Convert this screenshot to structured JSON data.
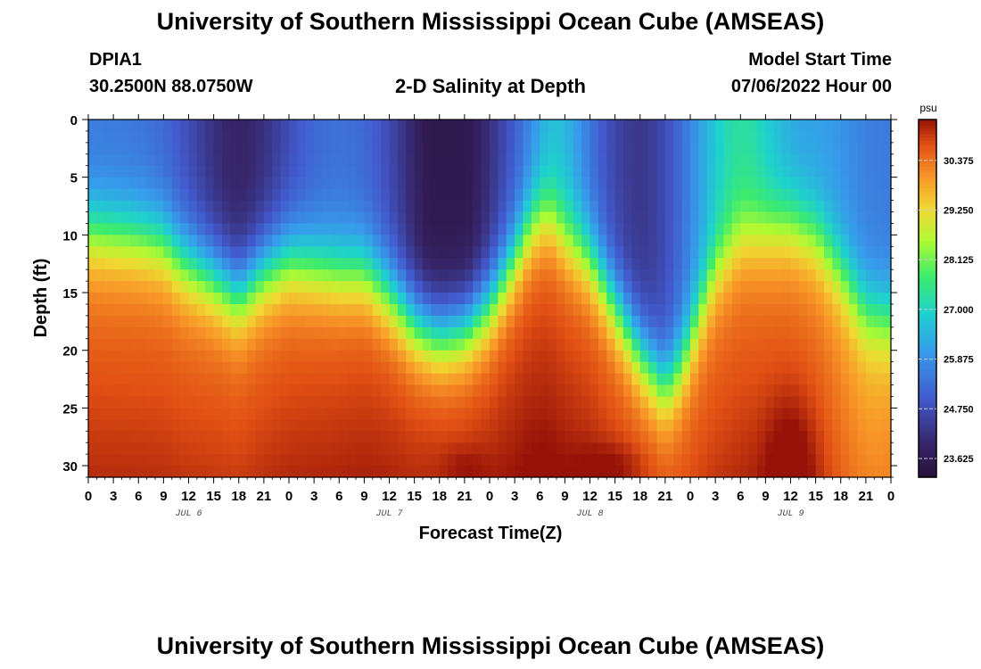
{
  "header": {
    "title": "University of Southern Mississippi Ocean Cube (AMSEAS)",
    "station_id": "DPIA1",
    "station_coords": "30.2500N  88.0750W",
    "subtitle": "2-D Salinity at Depth",
    "model_start_label": "Model Start Time",
    "model_start_value": "07/06/2022 Hour 00"
  },
  "footer": {
    "title": "University of Southern Mississippi Ocean Cube (AMSEAS)"
  },
  "chart_data": {
    "type": "heatmap",
    "title": "2-D Salinity at Depth",
    "xlabel": "Forecast Time(Z)",
    "ylabel": "Depth (ft)",
    "x_unit": "hours since 07/06/2022 00Z",
    "xlim": [
      0,
      96
    ],
    "ylim": [
      0,
      31
    ],
    "y_inverted": true,
    "x_ticks": [
      0,
      3,
      6,
      9,
      12,
      15,
      18,
      21,
      24,
      27,
      30,
      33,
      36,
      39,
      42,
      45,
      48,
      51,
      54,
      57,
      60,
      63,
      66,
      69,
      72,
      75,
      78,
      81,
      84,
      87,
      90,
      93,
      96
    ],
    "x_tick_labels": [
      "0",
      "3",
      "6",
      "9",
      "12",
      "15",
      "18",
      "21",
      "0",
      "3",
      "6",
      "9",
      "12",
      "15",
      "18",
      "21",
      "0",
      "3",
      "6",
      "9",
      "12",
      "15",
      "18",
      "21",
      "0",
      "3",
      "6",
      "9",
      "12",
      "15",
      "18",
      "21",
      "0"
    ],
    "day_labels": [
      {
        "x": 12,
        "label": "JUL 6"
      },
      {
        "x": 36,
        "label": "JUL 7"
      },
      {
        "x": 60,
        "label": "JUL 8"
      },
      {
        "x": 84,
        "label": "JUL 9"
      }
    ],
    "y_ticks": [
      0,
      5,
      10,
      15,
      20,
      25,
      30
    ],
    "y_tick_labels": [
      "0",
      "5",
      "10",
      "15",
      "20",
      "25",
      "30"
    ],
    "colorbar": {
      "unit": "psu",
      "range": [
        23.2,
        31.3
      ],
      "ticks": [
        23.625,
        24.75,
        25.875,
        27.0,
        28.125,
        29.25,
        30.375
      ],
      "tick_labels": [
        "23.625",
        "24.750",
        "25.875",
        "27.000",
        "28.125",
        "29.250",
        "30.375"
      ]
    },
    "value_field": {
      "description": "salinity (psu) vs forecast hour and depth (ft); halocline depth by hour",
      "halocline_depth_by_hour": [
        [
          0,
          9.5
        ],
        [
          6,
          10
        ],
        [
          9,
          10.5
        ],
        [
          11,
          12
        ],
        [
          15,
          13.5
        ],
        [
          18,
          15
        ],
        [
          21,
          13
        ],
        [
          24,
          12
        ],
        [
          27,
          12.5
        ],
        [
          30,
          13
        ],
        [
          33,
          13
        ],
        [
          36,
          15
        ],
        [
          39,
          17.5
        ],
        [
          42,
          18.5
        ],
        [
          45,
          18
        ],
        [
          48,
          16
        ],
        [
          51,
          12
        ],
        [
          53,
          9
        ],
        [
          55,
          8
        ],
        [
          57,
          10
        ],
        [
          60,
          12
        ],
        [
          63,
          16
        ],
        [
          66,
          20
        ],
        [
          69,
          23
        ],
        [
          71,
          21
        ],
        [
          73,
          17
        ],
        [
          75,
          13
        ],
        [
          78,
          10
        ],
        [
          81,
          9.5
        ],
        [
          84,
          9
        ],
        [
          87,
          10
        ],
        [
          90,
          13
        ],
        [
          93,
          16.5
        ],
        [
          96,
          17
        ]
      ],
      "surface_minimum_psu": 23.5,
      "bottom_maximum_psu": 31.2
    }
  }
}
